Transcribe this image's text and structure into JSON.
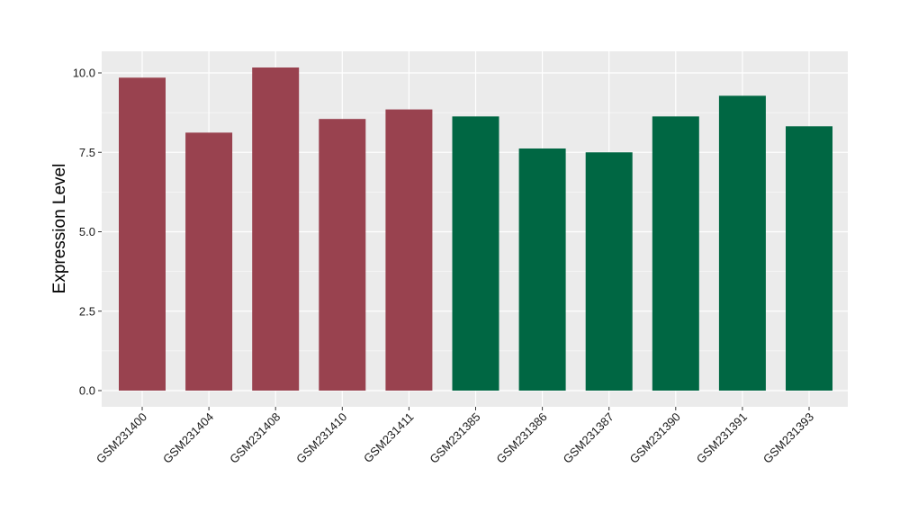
{
  "chart_data": {
    "type": "bar",
    "title": "",
    "xlabel": "",
    "ylabel": "Expression Level",
    "ylim": [
      -0.4,
      10.6
    ],
    "yticks": [
      0.0,
      2.5,
      5.0,
      7.5,
      10.0
    ],
    "ytick_labels": [
      "0.0",
      "2.5",
      "5.0",
      "7.5",
      "10.0"
    ],
    "grid": true,
    "legend": "none",
    "categories": [
      "GSM231400",
      "GSM231404",
      "GSM231408",
      "GSM231410",
      "GSM231411",
      "GSM231385",
      "GSM231386",
      "GSM231387",
      "GSM231390",
      "GSM231391",
      "GSM231393"
    ],
    "values": [
      9.85,
      8.12,
      10.17,
      8.55,
      8.85,
      8.63,
      7.62,
      7.5,
      8.63,
      9.28,
      8.32
    ],
    "bar_colors": [
      "#99424f",
      "#99424f",
      "#99424f",
      "#99424f",
      "#99424f",
      "#006743",
      "#006743",
      "#006743",
      "#006743",
      "#006743",
      "#006743"
    ]
  },
  "colors": {
    "panel_background": "#ebebeb",
    "grid_major": "#ffffff",
    "group_a": "#99424f",
    "group_b": "#006743"
  }
}
